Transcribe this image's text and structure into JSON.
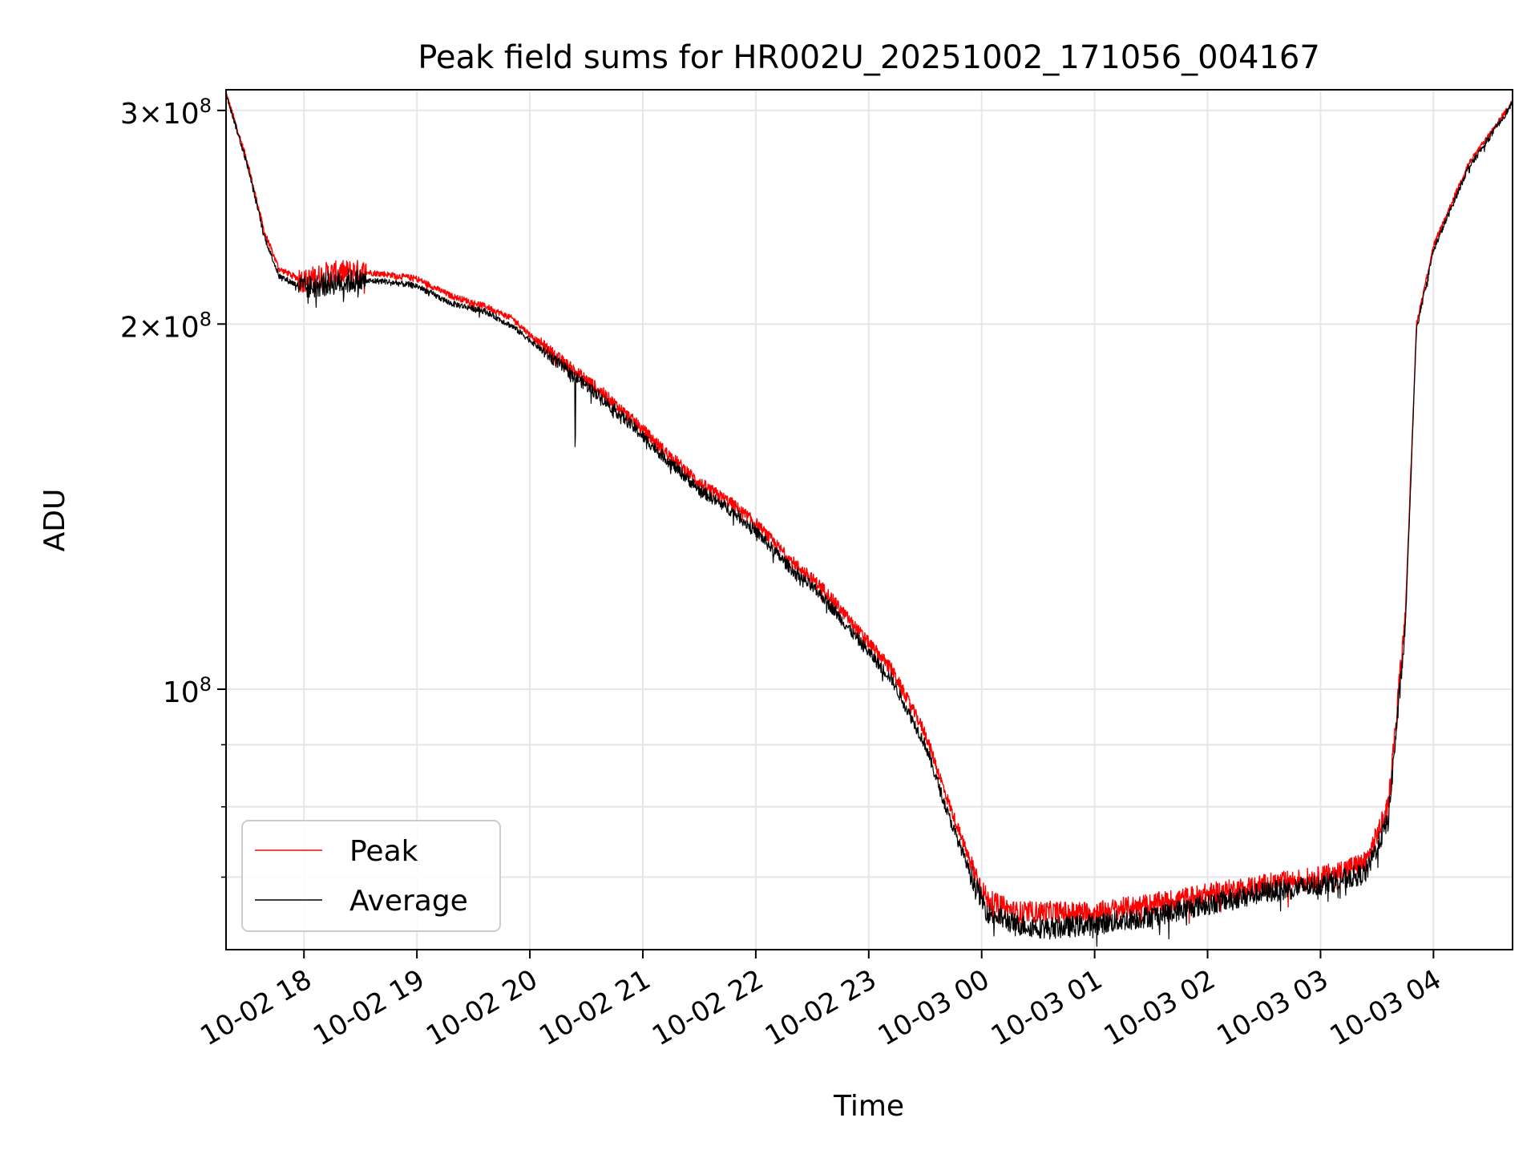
{
  "chart_data": {
    "type": "line",
    "title": "Peak field sums for HR002U_20251002_171056_004167",
    "xlabel": "Time",
    "ylabel": "ADU",
    "yscale": "log",
    "ylim": [
      61000000,
      312000000
    ],
    "xlim_hours_from_10_02_17_00": [
      17.31,
      28.7
    ],
    "grid": true,
    "legend_position": "lower-left",
    "x_ticks": [
      {
        "hour": 18,
        "label": "10-02 18"
      },
      {
        "hour": 19,
        "label": "10-02 19"
      },
      {
        "hour": 20,
        "label": "10-02 20"
      },
      {
        "hour": 21,
        "label": "10-02 21"
      },
      {
        "hour": 22,
        "label": "10-02 22"
      },
      {
        "hour": 23,
        "label": "10-02 23"
      },
      {
        "hour": 24,
        "label": "10-03 00"
      },
      {
        "hour": 25,
        "label": "10-03 01"
      },
      {
        "hour": 26,
        "label": "10-03 02"
      },
      {
        "hour": 27,
        "label": "10-03 03"
      },
      {
        "hour": 28,
        "label": "10-03 04"
      }
    ],
    "y_major_ticks": [
      {
        "value": 100000000,
        "mantissa": "",
        "exponent": "8"
      },
      {
        "value": 200000000,
        "mantissa": "2",
        "exponent": "8"
      },
      {
        "value": 300000000,
        "mantissa": "3",
        "exponent": "8"
      }
    ],
    "y_minor_ticks": [
      60000000,
      70000000,
      80000000,
      90000000
    ],
    "tick_base": "10",
    "tick_times": "×",
    "series": [
      {
        "name": "Peak",
        "color": "#ff0000",
        "x_hours": [
          17.31,
          17.5,
          17.65,
          17.78,
          18.0,
          18.2,
          18.45,
          18.7,
          19.0,
          19.3,
          19.6,
          19.85,
          20.0,
          20.3,
          20.6,
          20.9,
          21.2,
          21.5,
          21.8,
          22.0,
          22.3,
          22.6,
          22.9,
          23.2,
          23.5,
          23.7,
          23.9,
          24.05,
          24.3,
          24.6,
          25.0,
          25.5,
          26.0,
          26.5,
          27.0,
          27.4,
          27.6,
          27.75,
          27.85,
          28.0,
          28.3,
          28.7
        ],
        "values": [
          310000000,
          272000000,
          238000000,
          222000000,
          217000000,
          220000000,
          221000000,
          220000000,
          218000000,
          211000000,
          207000000,
          202000000,
          196000000,
          186000000,
          177000000,
          167000000,
          157000000,
          148000000,
          142000000,
          137000000,
          128000000,
          121000000,
          112000000,
          104000000,
          92000000,
          81000000,
          72000000,
          67000000,
          65500000,
          65500000,
          65500000,
          66500000,
          67800000,
          69000000,
          70000000,
          72000000,
          80000000,
          115000000,
          200000000,
          232000000,
          270000000,
          305000000
        ]
      },
      {
        "name": "Average",
        "color": "#000000",
        "x_hours": [
          17.31,
          17.5,
          17.65,
          17.78,
          18.0,
          18.2,
          18.45,
          18.7,
          19.0,
          19.3,
          19.6,
          19.85,
          20.0,
          20.3,
          20.6,
          20.9,
          21.2,
          21.5,
          21.8,
          22.0,
          22.3,
          22.6,
          22.9,
          23.2,
          23.5,
          23.7,
          23.9,
          24.05,
          24.3,
          24.6,
          25.0,
          25.5,
          26.0,
          26.5,
          27.0,
          27.4,
          27.6,
          27.75,
          27.85,
          28.0,
          28.3,
          28.7
        ],
        "values": [
          310000000,
          270000000,
          236000000,
          219000000,
          214000000,
          216000000,
          217000000,
          217000000,
          215000000,
          208000000,
          205000000,
          199000000,
          194000000,
          184000000,
          175000000,
          165000000,
          155000000,
          146000000,
          140000000,
          135000000,
          126000000,
          119000000,
          110000000,
          102000000,
          90000000,
          79000000,
          70500000,
          65500000,
          64000000,
          63500000,
          64000000,
          65000000,
          66500000,
          68000000,
          69000000,
          70500000,
          78000000,
          112000000,
          198000000,
          230000000,
          268000000,
          304000000
        ]
      }
    ]
  }
}
